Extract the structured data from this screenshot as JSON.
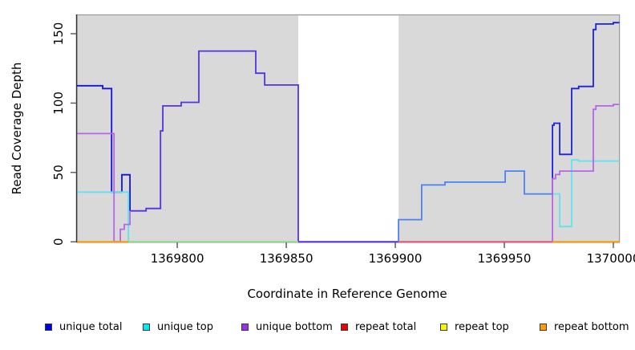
{
  "chart_data": {
    "type": "line",
    "subtype": "step-coverage-plot",
    "title": "",
    "xlabel": "Coordinate in Reference Genome",
    "ylabel": "Read Coverage Depth",
    "x_range": [
      1369754,
      1370002.8
    ],
    "y_range": [
      0,
      164
    ],
    "x_ticks": [
      1369800,
      1369850,
      1369900,
      1369950,
      1370000
    ],
    "y_ticks": [
      0,
      50,
      100,
      150
    ],
    "grid": false,
    "panel_bg": "#d9d9d9",
    "panel_border_color": "#9a9a9a",
    "axis_color": "#333333",
    "tick_color": "#555555",
    "gap_region": {
      "x0": 1369855.5,
      "x1": 1369901.5,
      "color": "#ffffff"
    },
    "series": [
      {
        "name": "unique total",
        "legend_color": "#0000ee",
        "segments": [
          {
            "color": "#1114e0",
            "points": [
              [
                1369754,
                112.5
              ],
              [
                1369765.8,
                110.5
              ],
              [
                1369769.9,
                35.8
              ],
              [
                1369774.6,
                48.3
              ],
              [
                1369778.3,
                22.3
              ]
            ]
          },
          {
            "color": "#5531e2",
            "points": [
              [
                1369778.3,
                22.3
              ],
              [
                1369785.7,
                24
              ],
              [
                1369792.3,
                80
              ],
              [
                1369793.4,
                98
              ],
              [
                1369801.8,
                100.5
              ],
              [
                1369809.9,
                137.5
              ],
              [
                1369836,
                121.5
              ],
              [
                1369840.1,
                113
              ],
              [
                1369855.5,
                0
              ],
              [
                1369901.5,
                0
              ]
            ]
          },
          {
            "color": "#4b82f0",
            "points": [
              [
                1369901.5,
                0
              ],
              [
                1369901.5,
                16
              ],
              [
                1369912.1,
                41
              ],
              [
                1369922.8,
                43
              ],
              [
                1369950.4,
                51
              ],
              [
                1369959.2,
                34.5
              ],
              [
                1369972.1,
                34.5
              ]
            ]
          },
          {
            "color": "#1b22dc",
            "points": [
              [
                1369972.1,
                34.5
              ],
              [
                1369972.1,
                84
              ],
              [
                1369972.8,
                85.5
              ],
              [
                1369975.4,
                63
              ],
              [
                1369980.9,
                110.5
              ],
              [
                1369984.1,
                112
              ],
              [
                1369990.8,
                153
              ],
              [
                1369992,
                157
              ],
              [
                1370000,
                158
              ],
              [
                1370002.8,
                158
              ]
            ]
          }
        ]
      },
      {
        "name": "unique top",
        "legend_color": "#00eaf2",
        "segments": [
          {
            "color": "#5fe4ef",
            "points": [
              [
                1369754,
                35.8
              ],
              [
                1369777.6,
                0
              ],
              [
                1369777.6,
                0
              ]
            ]
          },
          {
            "color": "#5fe4ef",
            "points": [
              [
                1369972.1,
                34.5
              ],
              [
                1369975.4,
                11
              ],
              [
                1369980.9,
                59
              ],
              [
                1369984.1,
                58.2
              ],
              [
                1370002.8,
                58.2
              ]
            ]
          }
        ]
      },
      {
        "name": "unique bottom",
        "legend_color": "#9b30e8",
        "segments": [
          {
            "color": "#b765e8",
            "points": [
              [
                1369754,
                78
              ],
              [
                1369771,
                0
              ],
              [
                1369773.9,
                9
              ],
              [
                1369775.7,
                12.5
              ],
              [
                1369778.3,
                22.3
              ]
            ]
          },
          {
            "color": "#b765e8",
            "points": [
              [
                1369972.1,
                0
              ],
              [
                1369972.1,
                45.5
              ],
              [
                1369973.5,
                48.5
              ],
              [
                1369975.4,
                51
              ],
              [
                1369990.8,
                95.5
              ],
              [
                1369992,
                98
              ],
              [
                1370000,
                99
              ],
              [
                1370002.8,
                99
              ]
            ]
          }
        ]
      },
      {
        "name": "repeat total",
        "legend_color": "#ee0000",
        "segments": []
      },
      {
        "name": "repeat top",
        "legend_color": "#f6f600",
        "segments": []
      },
      {
        "name": "repeat bottom",
        "legend_color": "#ff9a00",
        "segments": []
      }
    ],
    "zero_line_segments": [
      {
        "x0": 1369754,
        "x1": 1369777.6,
        "color": "#ff9a00"
      },
      {
        "x0": 1369777.6,
        "x1": 1369855.5,
        "color": "#8fd98f"
      },
      {
        "x0": 1369901.5,
        "x1": 1369972.1,
        "color": "#e8547c"
      },
      {
        "x0": 1369972.1,
        "x1": 1370002.8,
        "color": "#ff9a00"
      }
    ],
    "legend": [
      {
        "label": "unique total",
        "color": "#0000ee"
      },
      {
        "label": "unique top",
        "color": "#00eaf2"
      },
      {
        "label": "unique bottom",
        "color": "#9b30e8"
      },
      {
        "label": "repeat total",
        "color": "#ee0000"
      },
      {
        "label": "repeat top",
        "color": "#f6f600"
      },
      {
        "label": "repeat bottom",
        "color": "#ff9a00"
      }
    ]
  }
}
